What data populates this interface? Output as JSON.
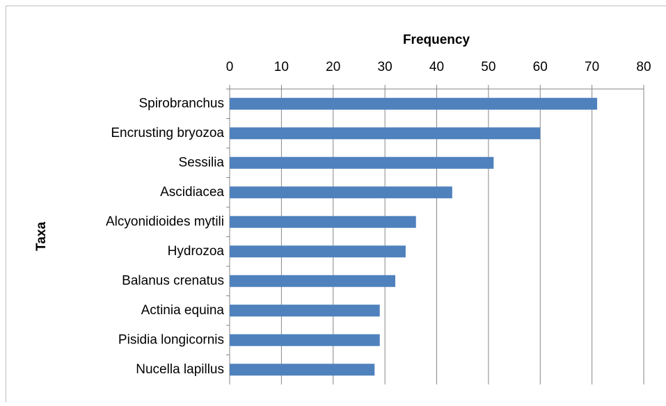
{
  "chart_data": {
    "type": "bar",
    "orientation": "horizontal",
    "x_label": "Frequency",
    "y_label": "Taxa",
    "categories": [
      "Spirobranchus",
      "Encrusting bryozoa",
      "Sessilia",
      "Ascidiacea",
      "Alcyonidioides mytili",
      "Hydrozoa",
      "Balanus crenatus",
      "Actinia equina",
      "Pisidia longicornis",
      "Nucella lapillus"
    ],
    "values": [
      71,
      60,
      51,
      43,
      36,
      34,
      32,
      29,
      29,
      28
    ],
    "color": "#4f81bd",
    "xlim": [
      0,
      80
    ],
    "xticks": [
      0,
      10,
      20,
      30,
      40,
      50,
      60,
      70,
      80
    ],
    "grid": true
  }
}
